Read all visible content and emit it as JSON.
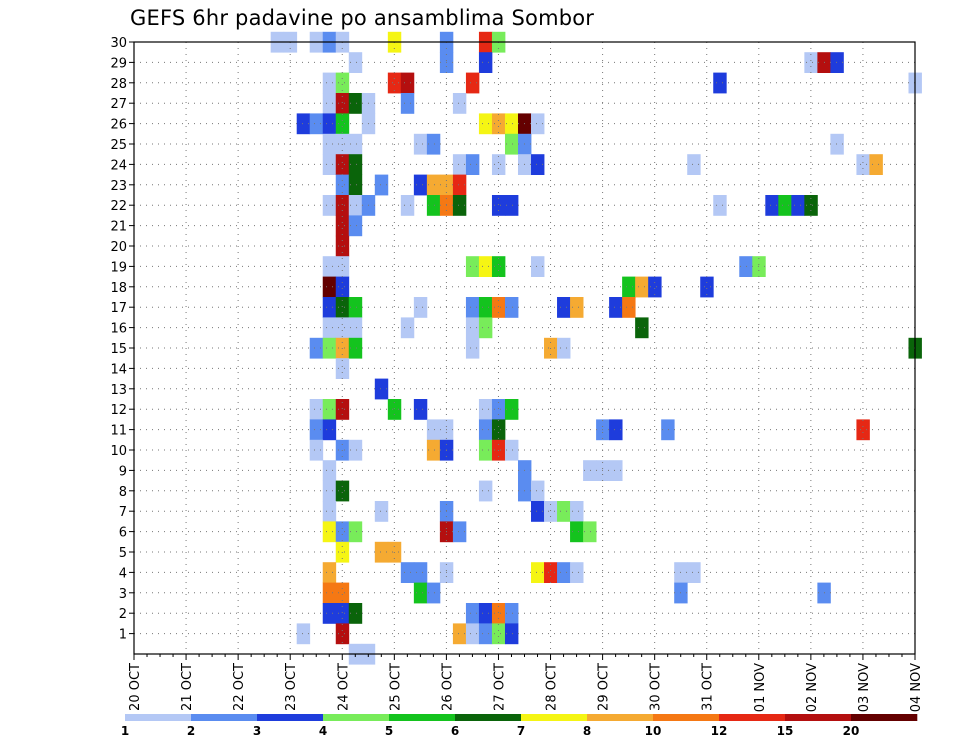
{
  "title": "GEFS 6hr padavine po ansamblima Sombor",
  "chart_data": {
    "type": "heatmap",
    "title": "GEFS 6hr padavine po ansamblima Sombor",
    "xlabel": "",
    "ylabel": "",
    "x_unit": "6-hour steps from 20 OCT 00Z",
    "xlim": [
      0,
      60
    ],
    "ylim": [
      0,
      30
    ],
    "x_ticks": [
      "20 OCT",
      "21 OCT",
      "22 OCT",
      "23 OCT",
      "24 OCT",
      "25 OCT",
      "26 OCT",
      "27 OCT",
      "28 OCT",
      "29 OCT",
      "30 OCT",
      "31 OCT",
      "01 NOV",
      "02 NOV",
      "03 NOV",
      "04 NOV"
    ],
    "y_ticks": [
      "1",
      "2",
      "3",
      "4",
      "5",
      "6",
      "7",
      "8",
      "9",
      "10",
      "11",
      "12",
      "13",
      "14",
      "15",
      "16",
      "17",
      "18",
      "19",
      "20",
      "21",
      "22",
      "23",
      "24",
      "25",
      "26",
      "27",
      "28",
      "29",
      "30"
    ],
    "grid": true,
    "colorbar": {
      "labels": [
        "1",
        "2",
        "3",
        "4",
        "5",
        "6",
        "7",
        "8",
        "10",
        "12",
        "15",
        "20"
      ],
      "colors": [
        "#b4c8f5",
        "#5a8cf0",
        "#1e3cdc",
        "#78ec5a",
        "#14c31e",
        "#0a640a",
        "#f5f514",
        "#f5aa32",
        "#f57814",
        "#e62814",
        "#b40f0f",
        "#640000"
      ]
    },
    "cells": [
      [
        30,
        [
          [
            11,
            1
          ],
          [
            12,
            1
          ],
          [
            14,
            1
          ],
          [
            15,
            2
          ],
          [
            16,
            1
          ],
          [
            20,
            7
          ],
          [
            24,
            2
          ],
          [
            27,
            10
          ],
          [
            28,
            4
          ]
        ]
      ],
      [
        29,
        [
          [
            17,
            1
          ],
          [
            24,
            2
          ],
          [
            27,
            3
          ],
          [
            52,
            1
          ],
          [
            53,
            11
          ],
          [
            54,
            3
          ]
        ]
      ],
      [
        28,
        [
          [
            15,
            1
          ],
          [
            16,
            4
          ],
          [
            20,
            10
          ],
          [
            21,
            11
          ],
          [
            26,
            10
          ],
          [
            45,
            3
          ],
          [
            60,
            1
          ]
        ]
      ],
      [
        27,
        [
          [
            15,
            1
          ],
          [
            16,
            11
          ],
          [
            17,
            6
          ],
          [
            18,
            1
          ],
          [
            21,
            2
          ],
          [
            25,
            1
          ]
        ]
      ],
      [
        26,
        [
          [
            13,
            3
          ],
          [
            14,
            2
          ],
          [
            15,
            3
          ],
          [
            16,
            5
          ],
          [
            18,
            1
          ],
          [
            27,
            7
          ],
          [
            28,
            8
          ],
          [
            29,
            7
          ],
          [
            30,
            12
          ],
          [
            31,
            1
          ]
        ]
      ],
      [
        25,
        [
          [
            15,
            1
          ],
          [
            16,
            1
          ],
          [
            17,
            1
          ],
          [
            22,
            1
          ],
          [
            23,
            2
          ],
          [
            29,
            4
          ],
          [
            30,
            2
          ],
          [
            54,
            1
          ]
        ]
      ],
      [
        24,
        [
          [
            15,
            1
          ],
          [
            16,
            11
          ],
          [
            17,
            6
          ],
          [
            25,
            1
          ],
          [
            26,
            2
          ],
          [
            28,
            1
          ],
          [
            30,
            1
          ],
          [
            31,
            3
          ],
          [
            43,
            1
          ],
          [
            56,
            1
          ],
          [
            57,
            8
          ]
        ]
      ],
      [
        23,
        [
          [
            16,
            2
          ],
          [
            17,
            6
          ],
          [
            19,
            2
          ],
          [
            22,
            3
          ],
          [
            23,
            8
          ],
          [
            24,
            8
          ],
          [
            25,
            10
          ]
        ]
      ],
      [
        22,
        [
          [
            15,
            1
          ],
          [
            16,
            11
          ],
          [
            17,
            1
          ],
          [
            18,
            2
          ],
          [
            21,
            1
          ],
          [
            23,
            5
          ],
          [
            24,
            9
          ],
          [
            25,
            6
          ],
          [
            28,
            3
          ],
          [
            29,
            3
          ],
          [
            45,
            1
          ],
          [
            49,
            3
          ],
          [
            50,
            5
          ],
          [
            51,
            3
          ],
          [
            52,
            6
          ]
        ]
      ],
      [
        21,
        [
          [
            16,
            11
          ],
          [
            17,
            2
          ]
        ]
      ],
      [
        20,
        [
          [
            16,
            11
          ]
        ]
      ],
      [
        19,
        [
          [
            15,
            1
          ],
          [
            16,
            1
          ],
          [
            26,
            4
          ],
          [
            27,
            7
          ],
          [
            28,
            5
          ],
          [
            31,
            1
          ],
          [
            47,
            2
          ],
          [
            48,
            4
          ]
        ]
      ],
      [
        18,
        [
          [
            15,
            12
          ],
          [
            16,
            3
          ],
          [
            38,
            5
          ],
          [
            39,
            8
          ],
          [
            40,
            3
          ],
          [
            44,
            3
          ]
        ]
      ],
      [
        17,
        [
          [
            15,
            3
          ],
          [
            16,
            6
          ],
          [
            17,
            5
          ],
          [
            22,
            1
          ],
          [
            26,
            2
          ],
          [
            27,
            5
          ],
          [
            28,
            9
          ],
          [
            29,
            2
          ],
          [
            33,
            3
          ],
          [
            34,
            8
          ],
          [
            37,
            3
          ],
          [
            38,
            9
          ]
        ]
      ],
      [
        16,
        [
          [
            15,
            1
          ],
          [
            16,
            1
          ],
          [
            17,
            1
          ],
          [
            21,
            1
          ],
          [
            26,
            1
          ],
          [
            27,
            4
          ],
          [
            39,
            6
          ]
        ]
      ],
      [
        15,
        [
          [
            14,
            2
          ],
          [
            15,
            4
          ],
          [
            16,
            8
          ],
          [
            17,
            5
          ],
          [
            26,
            1
          ],
          [
            32,
            8
          ],
          [
            33,
            1
          ],
          [
            60,
            6
          ]
        ]
      ],
      [
        14,
        [
          [
            16,
            1
          ]
        ]
      ],
      [
        13,
        [
          [
            19,
            3
          ]
        ]
      ],
      [
        12,
        [
          [
            14,
            1
          ],
          [
            15,
            4
          ],
          [
            16,
            11
          ],
          [
            20,
            5
          ],
          [
            22,
            3
          ],
          [
            27,
            1
          ],
          [
            28,
            2
          ],
          [
            29,
            5
          ]
        ]
      ],
      [
        11,
        [
          [
            14,
            2
          ],
          [
            15,
            3
          ],
          [
            23,
            1
          ],
          [
            24,
            1
          ],
          [
            27,
            2
          ],
          [
            28,
            6
          ],
          [
            36,
            2
          ],
          [
            37,
            3
          ],
          [
            41,
            2
          ],
          [
            56,
            10
          ]
        ]
      ],
      [
        10,
        [
          [
            14,
            1
          ],
          [
            16,
            2
          ],
          [
            17,
            1
          ],
          [
            23,
            8
          ],
          [
            24,
            3
          ],
          [
            27,
            4
          ],
          [
            28,
            10
          ],
          [
            29,
            1
          ]
        ]
      ],
      [
        9,
        [
          [
            15,
            1
          ],
          [
            30,
            2
          ],
          [
            35,
            1
          ],
          [
            36,
            1
          ],
          [
            37,
            1
          ]
        ]
      ],
      [
        8,
        [
          [
            15,
            1
          ],
          [
            16,
            6
          ],
          [
            27,
            1
          ],
          [
            30,
            2
          ],
          [
            31,
            1
          ]
        ]
      ],
      [
        7,
        [
          [
            15,
            1
          ],
          [
            19,
            1
          ],
          [
            24,
            2
          ],
          [
            31,
            3
          ],
          [
            32,
            1
          ],
          [
            33,
            4
          ],
          [
            34,
            1
          ]
        ]
      ],
      [
        6,
        [
          [
            15,
            7
          ],
          [
            16,
            2
          ],
          [
            17,
            4
          ],
          [
            24,
            11
          ],
          [
            25,
            2
          ],
          [
            34,
            5
          ],
          [
            35,
            4
          ]
        ]
      ],
      [
        5,
        [
          [
            16,
            7
          ],
          [
            19,
            8
          ],
          [
            20,
            8
          ]
        ]
      ],
      [
        4,
        [
          [
            15,
            8
          ],
          [
            21,
            2
          ],
          [
            22,
            2
          ],
          [
            24,
            1
          ],
          [
            31,
            7
          ],
          [
            32,
            10
          ],
          [
            33,
            2
          ],
          [
            34,
            1
          ],
          [
            42,
            1
          ],
          [
            43,
            1
          ]
        ]
      ],
      [
        3,
        [
          [
            15,
            9
          ],
          [
            16,
            9
          ],
          [
            22,
            5
          ],
          [
            23,
            2
          ],
          [
            42,
            2
          ],
          [
            53,
            2
          ]
        ]
      ],
      [
        2,
        [
          [
            15,
            3
          ],
          [
            16,
            3
          ],
          [
            17,
            6
          ],
          [
            26,
            2
          ],
          [
            27,
            3
          ],
          [
            28,
            9
          ],
          [
            29,
            2
          ]
        ]
      ],
      [
        1,
        [
          [
            13,
            1
          ],
          [
            16,
            11
          ],
          [
            25,
            8
          ],
          [
            26,
            1
          ],
          [
            27,
            2
          ],
          [
            28,
            4
          ],
          [
            29,
            3
          ]
        ]
      ],
      [
        0,
        [
          [
            17,
            1
          ],
          [
            18,
            1
          ]
        ]
      ]
    ]
  }
}
